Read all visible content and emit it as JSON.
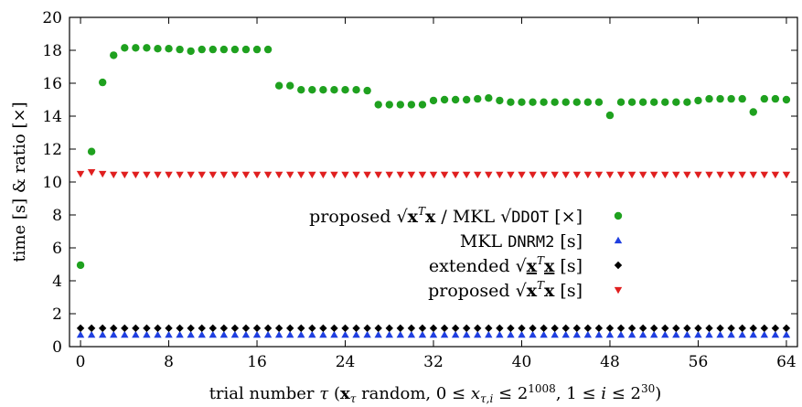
{
  "chart_data": {
    "type": "scatter",
    "title": "",
    "xlabel": "trial number τ (x_τ random, 0 ≤ x_τ,i ≤ 2^1008, 1 ≤ i ≤ 2^30)",
    "ylabel": "time [s] & ratio [×]",
    "xlim": [
      -1,
      65
    ],
    "ylim": [
      0,
      20
    ],
    "xticks": [
      0,
      8,
      16,
      24,
      32,
      40,
      48,
      56,
      64
    ],
    "yticks": [
      0,
      2,
      4,
      6,
      8,
      10,
      12,
      14,
      16,
      18,
      20
    ],
    "grid": false,
    "legend_position": "center",
    "x": [
      0,
      1,
      2,
      3,
      4,
      5,
      6,
      7,
      8,
      9,
      10,
      11,
      12,
      13,
      14,
      15,
      16,
      17,
      18,
      19,
      20,
      21,
      22,
      23,
      24,
      25,
      26,
      27,
      28,
      29,
      30,
      31,
      32,
      33,
      34,
      35,
      36,
      37,
      38,
      39,
      40,
      41,
      42,
      43,
      44,
      45,
      46,
      47,
      48,
      49,
      50,
      51,
      52,
      53,
      54,
      55,
      56,
      57,
      58,
      59,
      60,
      61,
      62,
      63,
      64
    ],
    "series": [
      {
        "name": "proposed √xᵀx / MKL √DDOT [×]",
        "marker": "circle",
        "color": "#1fa11f",
        "values": [
          4.95,
          11.85,
          16.05,
          17.7,
          18.15,
          18.15,
          18.15,
          18.1,
          18.1,
          18.05,
          17.95,
          18.05,
          18.05,
          18.05,
          18.05,
          18.05,
          18.05,
          18.05,
          15.85,
          15.85,
          15.6,
          15.6,
          15.6,
          15.6,
          15.6,
          15.6,
          15.55,
          14.7,
          14.7,
          14.7,
          14.7,
          14.7,
          14.95,
          15.0,
          15.0,
          15.0,
          15.05,
          15.1,
          14.95,
          14.85,
          14.85,
          14.85,
          14.85,
          14.85,
          14.85,
          14.85,
          14.85,
          14.85,
          14.05,
          14.85,
          14.85,
          14.85,
          14.85,
          14.85,
          14.85,
          14.85,
          14.95,
          15.05,
          15.05,
          15.05,
          15.05,
          14.25,
          15.05,
          15.05,
          15.0
        ]
      },
      {
        "name": "MKL DNRM2 [s]",
        "marker": "triangle-up",
        "color": "#1f3fe0",
        "values": [
          0.72,
          0.72,
          0.72,
          0.72,
          0.72,
          0.72,
          0.72,
          0.72,
          0.72,
          0.72,
          0.72,
          0.72,
          0.72,
          0.72,
          0.72,
          0.72,
          0.72,
          0.72,
          0.72,
          0.72,
          0.72,
          0.72,
          0.72,
          0.72,
          0.72,
          0.72,
          0.72,
          0.72,
          0.72,
          0.72,
          0.72,
          0.72,
          0.72,
          0.72,
          0.72,
          0.72,
          0.72,
          0.72,
          0.72,
          0.72,
          0.72,
          0.72,
          0.72,
          0.72,
          0.72,
          0.72,
          0.72,
          0.72,
          0.72,
          0.72,
          0.72,
          0.72,
          0.72,
          0.72,
          0.72,
          0.72,
          0.72,
          0.72,
          0.72,
          0.72,
          0.72,
          0.72,
          0.72,
          0.72,
          0.72
        ]
      },
      {
        "name": "extended √xᵀx [s]",
        "marker": "diamond",
        "color": "#000000",
        "values": [
          1.12,
          1.12,
          1.12,
          1.12,
          1.12,
          1.12,
          1.12,
          1.12,
          1.12,
          1.12,
          1.12,
          1.12,
          1.12,
          1.12,
          1.12,
          1.12,
          1.12,
          1.12,
          1.12,
          1.12,
          1.12,
          1.12,
          1.12,
          1.12,
          1.12,
          1.12,
          1.12,
          1.12,
          1.12,
          1.12,
          1.12,
          1.12,
          1.12,
          1.12,
          1.12,
          1.12,
          1.12,
          1.12,
          1.12,
          1.12,
          1.12,
          1.12,
          1.12,
          1.12,
          1.12,
          1.12,
          1.12,
          1.12,
          1.12,
          1.12,
          1.12,
          1.12,
          1.12,
          1.12,
          1.12,
          1.12,
          1.12,
          1.12,
          1.12,
          1.12,
          1.12,
          1.12,
          1.12,
          1.12,
          1.12
        ]
      },
      {
        "name": "proposed √xᵀx [s]",
        "marker": "triangle-down",
        "color": "#e01f1f",
        "values": [
          10.5,
          10.6,
          10.5,
          10.45,
          10.45,
          10.45,
          10.45,
          10.45,
          10.45,
          10.45,
          10.45,
          10.45,
          10.45,
          10.45,
          10.45,
          10.45,
          10.45,
          10.45,
          10.45,
          10.45,
          10.45,
          10.45,
          10.45,
          10.45,
          10.45,
          10.45,
          10.45,
          10.45,
          10.45,
          10.45,
          10.45,
          10.45,
          10.45,
          10.45,
          10.45,
          10.45,
          10.45,
          10.45,
          10.45,
          10.45,
          10.45,
          10.45,
          10.45,
          10.45,
          10.45,
          10.45,
          10.45,
          10.45,
          10.45,
          10.45,
          10.45,
          10.45,
          10.45,
          10.45,
          10.45,
          10.45,
          10.45,
          10.45,
          10.45,
          10.45,
          10.45,
          10.45,
          10.45,
          10.45,
          10.45
        ]
      }
    ]
  }
}
